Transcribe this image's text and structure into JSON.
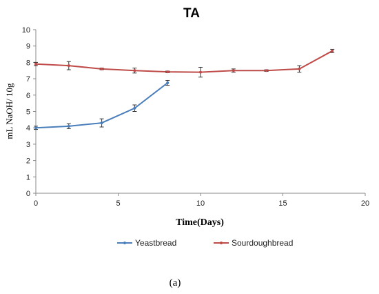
{
  "caption": "(a)",
  "chart_data": {
    "type": "line",
    "title": "TA",
    "xlabel": "Time(Days)",
    "ylabel": "mL NaOH/ 10g",
    "xlim": [
      0,
      20
    ],
    "ylim": [
      0,
      10
    ],
    "x_ticks": [
      "0",
      "5",
      "10",
      "15",
      "20"
    ],
    "y_ticks": [
      "0",
      "1",
      "2",
      "3",
      "4",
      "5",
      "6",
      "7",
      "8",
      "9",
      "10"
    ],
    "grid": false,
    "legend_position": "bottom",
    "series": [
      {
        "name": "Yeastbread",
        "color": "#4a7ebb",
        "x": [
          0,
          2,
          4,
          6,
          8
        ],
        "y": [
          4.0,
          4.1,
          4.3,
          5.2,
          6.75
        ],
        "error": [
          0.1,
          0.15,
          0.25,
          0.2,
          0.15
        ]
      },
      {
        "name": "Sourdoughbread",
        "color": "#be4b48",
        "x": [
          0,
          2,
          4,
          6,
          8,
          10,
          12,
          14,
          16,
          18
        ],
        "y": [
          7.9,
          7.8,
          7.6,
          7.5,
          7.42,
          7.4,
          7.5,
          7.5,
          7.6,
          8.7
        ],
        "error": [
          0.1,
          0.25,
          0.05,
          0.15,
          0.05,
          0.3,
          0.1,
          0.05,
          0.2,
          0.1
        ]
      }
    ]
  }
}
